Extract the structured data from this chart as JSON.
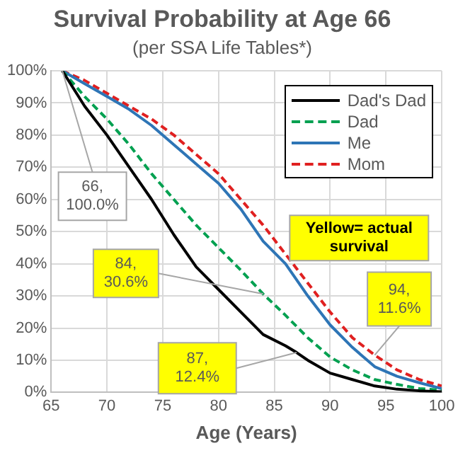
{
  "chart_data": {
    "type": "line",
    "title": "Survival Probability at Age 66",
    "subtitle": "(per SSA Life Tables*)",
    "xlabel": "Age (Years)",
    "x": [
      66,
      68,
      70,
      72,
      74,
      76,
      78,
      80,
      82,
      84,
      86,
      87,
      88,
      90,
      92,
      94,
      96,
      98,
      100
    ],
    "series": [
      {
        "name": "Dad's Dad",
        "color": "#000000",
        "line_style": "solid",
        "values": [
          100,
          89,
          80,
          70,
          60,
          49,
          39,
          32,
          25,
          18,
          14.5,
          12.4,
          10,
          6,
          4,
          2,
          1,
          0.5,
          0.2
        ]
      },
      {
        "name": "Dad",
        "color": "#00a050",
        "line_style": "dashed",
        "values": [
          100,
          92,
          85,
          77,
          68,
          60,
          52,
          45,
          38,
          30.6,
          24,
          20.5,
          17,
          11,
          7,
          4,
          2.5,
          1.2,
          0.7
        ]
      },
      {
        "name": "Me",
        "color": "#2e75b6",
        "line_style": "solid",
        "values": [
          100,
          96,
          92,
          88,
          83,
          77,
          71,
          65,
          57,
          47,
          40,
          35,
          30,
          21,
          14,
          8,
          5,
          3,
          1.2
        ]
      },
      {
        "name": "Mom",
        "color": "#e02020",
        "line_style": "dashed",
        "values": [
          100,
          97,
          93,
          89,
          85,
          80,
          74,
          68,
          60,
          52,
          43,
          38.5,
          34,
          25,
          17,
          11.6,
          7,
          4,
          2
        ]
      }
    ],
    "xlim": [
      65,
      100
    ],
    "xticks": [
      65,
      70,
      75,
      80,
      85,
      90,
      95,
      100
    ],
    "ylim": [
      0,
      100
    ],
    "yticks": [
      {
        "value": 0,
        "label": "0%"
      },
      {
        "value": 10,
        "label": "10%"
      },
      {
        "value": 20,
        "label": "20%"
      },
      {
        "value": 30,
        "label": "30%"
      },
      {
        "value": 40,
        "label": "40%"
      },
      {
        "value": 50,
        "label": "50%"
      },
      {
        "value": 60,
        "label": "60%"
      },
      {
        "value": 70,
        "label": "70%"
      },
      {
        "value": 80,
        "label": "80%"
      },
      {
        "value": 90,
        "label": "90%"
      },
      {
        "value": 100,
        "label": "100%"
      }
    ],
    "grid": true,
    "legend": "top right",
    "marker": "none",
    "annotations": [
      {
        "text": "66, 100.0%",
        "x": 66,
        "y": 100
      },
      {
        "text": "84, 30.6%",
        "x": 84,
        "y": 30.6
      },
      {
        "text": "87, 12.4%",
        "x": 87,
        "y": 12.4
      },
      {
        "text": "94, 11.6%",
        "x": 94,
        "y": 11.6
      },
      "Yellow= actual survival"
    ]
  }
}
